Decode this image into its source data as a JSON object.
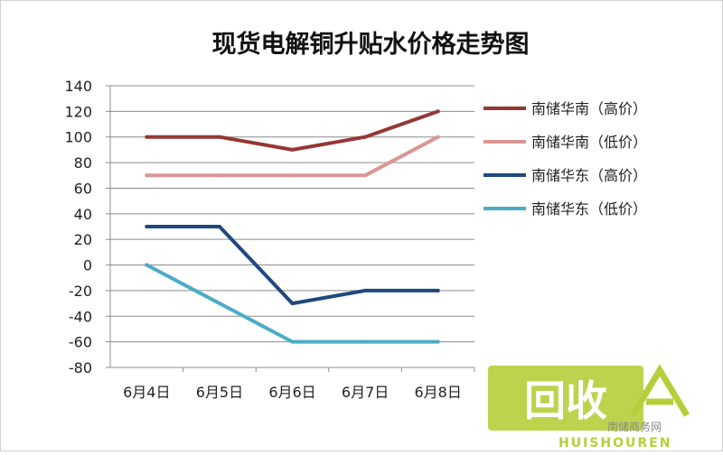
{
  "chart_data": {
    "type": "line",
    "title": "现货电解铜升贴水价格走势图",
    "categories": [
      "6月4日",
      "6月5日",
      "6月6日",
      "6月7日",
      "6月8日"
    ],
    "ylim": [
      -80,
      140
    ],
    "yticks": [
      140,
      120,
      100,
      80,
      60,
      40,
      20,
      0,
      -20,
      -40,
      -60,
      -80
    ],
    "grid": true,
    "legend_position": "right",
    "series": [
      {
        "name": "南储华南（高价）",
        "color": "#953735",
        "values": [
          100,
          100,
          90,
          100,
          120
        ]
      },
      {
        "name": "南储华南（低价）",
        "color": "#d99694",
        "values": [
          70,
          70,
          70,
          70,
          100
        ]
      },
      {
        "name": "南储华东（高价）",
        "color": "#1f497d",
        "values": [
          30,
          30,
          -30,
          -20,
          -20
        ]
      },
      {
        "name": "南储华东（低价）",
        "color": "#4bacc6",
        "values": [
          0,
          null,
          -60,
          -60,
          -60
        ]
      }
    ]
  },
  "watermark": {
    "logo_text": "回收",
    "brand_text": "HUISHOUREN",
    "site_name": "南储商务网",
    "logo_color": "#b5cf3a"
  }
}
